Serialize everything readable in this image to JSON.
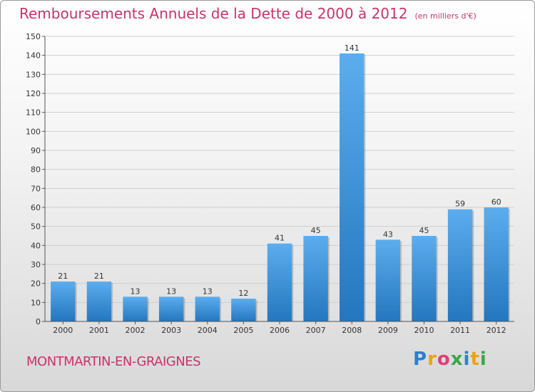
{
  "header": {
    "title": "Remboursements Annuels de la Dette de 2000 à 2012",
    "subtitle": "(en milliers d'€)"
  },
  "footer": {
    "commune": "MONTMARTIN-EN-GRAIGNES",
    "logo_text": "Proxiti"
  },
  "colors": {
    "bar": "#3b8fd6",
    "title": "#c8336b",
    "grid": "#c8c8c8"
  },
  "chart_data": {
    "type": "bar",
    "title": "Remboursements Annuels de la Dette de 2000 à 2012",
    "subtitle": "(en milliers d'€)",
    "categories": [
      "2000",
      "2001",
      "2002",
      "2003",
      "2004",
      "2005",
      "2006",
      "2007",
      "2008",
      "2009",
      "2010",
      "2011",
      "2012"
    ],
    "values": [
      21,
      21,
      13,
      13,
      13,
      12,
      41,
      45,
      141,
      43,
      45,
      59,
      60
    ],
    "ylim": [
      0,
      150
    ],
    "yticks": [
      0,
      10,
      20,
      30,
      40,
      50,
      60,
      70,
      80,
      90,
      100,
      110,
      120,
      130,
      140,
      150
    ],
    "grid": true,
    "legend": "none"
  }
}
